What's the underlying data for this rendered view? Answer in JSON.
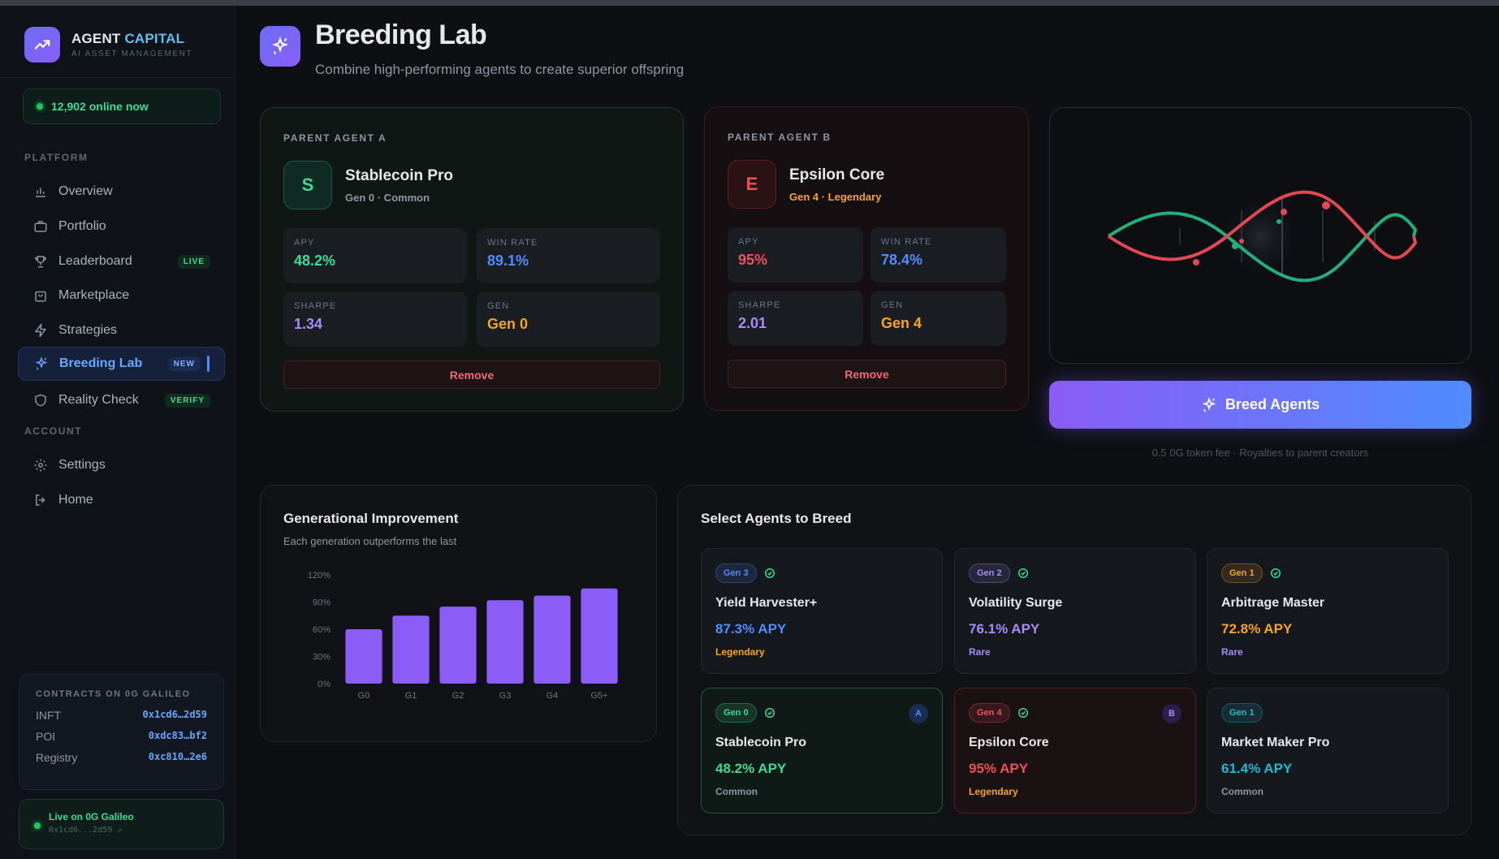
{
  "brand": {
    "name_1": "AGENT",
    "name_2": "CAPITAL",
    "subtitle": "AI ASSET MANAGEMENT"
  },
  "online": "12,902 online now",
  "sidebar": {
    "platform_label": "PLATFORM",
    "account_label": "ACCOUNT",
    "items": [
      {
        "label": "Overview"
      },
      {
        "label": "Portfolio"
      },
      {
        "label": "Leaderboard",
        "badge": "LIVE"
      },
      {
        "label": "Marketplace"
      },
      {
        "label": "Strategies"
      },
      {
        "label": "Breeding Lab",
        "badge": "NEW"
      },
      {
        "label": "Reality Check",
        "badge": "VERIFY"
      }
    ],
    "account_items": [
      {
        "label": "Settings"
      },
      {
        "label": "Home"
      }
    ]
  },
  "contracts": {
    "title": "CONTRACTS ON 0G GALILEO",
    "rows": [
      {
        "name": "INFT",
        "addr": "0x1cd6…2d59"
      },
      {
        "name": "POI",
        "addr": "0xdc83…bf2"
      },
      {
        "name": "Registry",
        "addr": "0xc810…2e6"
      }
    ]
  },
  "live": {
    "title": "Live on 0G Galileo",
    "addr": "0x1cd6...2d59 ↗"
  },
  "header": {
    "title": "Breeding Lab",
    "subtitle": "Combine high-performing agents to create superior offspring"
  },
  "parentA": {
    "label": "PARENT AGENT A",
    "initial": "S",
    "name": "Stablecoin Pro",
    "meta": "Gen 0 · Common",
    "stats": [
      {
        "label": "APY",
        "value": "48.2%"
      },
      {
        "label": "WIN RATE",
        "value": "89.1%"
      },
      {
        "label": "SHARPE",
        "value": "1.34"
      },
      {
        "label": "GEN",
        "value": "Gen 0"
      }
    ],
    "remove": "Remove"
  },
  "parentB": {
    "label": "PARENT AGENT B",
    "initial": "E",
    "name": "Epsilon Core",
    "meta": "Gen 4 · Legendary",
    "stats": [
      {
        "label": "APY",
        "value": "95%"
      },
      {
        "label": "WIN RATE",
        "value": "78.4%"
      },
      {
        "label": "SHARPE",
        "value": "2.01"
      },
      {
        "label": "GEN",
        "value": "Gen 4"
      }
    ],
    "remove": "Remove"
  },
  "breed_button": "Breed Agents",
  "fee_note": "0.5 0G token fee · Royalties to parent creators",
  "gen_chart": {
    "title": "Generational Improvement",
    "subtitle": "Each generation outperforms the last"
  },
  "chart_data": {
    "type": "bar",
    "title": "Generational Improvement",
    "categories": [
      "G0",
      "G1",
      "G2",
      "G3",
      "G4",
      "G5+"
    ],
    "values": [
      60,
      75,
      85,
      92,
      97,
      105
    ],
    "y_ticks": [
      "0%",
      "30%",
      "60%",
      "90%",
      "120%"
    ],
    "ylim": [
      0,
      120
    ],
    "color": "#8b5cf6"
  },
  "select": {
    "title": "Select Agents to Breed",
    "agents": [
      {
        "gen": "Gen 3",
        "name": "Yield Harvester+",
        "apy": "87.3% APY",
        "rarity": "Legendary",
        "genColor": "#4f8cff",
        "apyColor": "#4f8cff",
        "rarColor": "#f5a524",
        "slot": ""
      },
      {
        "gen": "Gen 2",
        "name": "Volatility Surge",
        "apy": "76.1% APY",
        "rarity": "Rare",
        "genColor": "#a78bfa",
        "apyColor": "#a78bfa",
        "rarColor": "#a78bfa",
        "slot": ""
      },
      {
        "gen": "Gen 1",
        "name": "Arbitrage Master",
        "apy": "72.8% APY",
        "rarity": "Rare",
        "genColor": "#f5a524",
        "apyColor": "#f5a524",
        "rarColor": "#a78bfa",
        "slot": ""
      },
      {
        "gen": "Gen 0",
        "name": "Stablecoin Pro",
        "apy": "48.2% APY",
        "rarity": "Common",
        "genColor": "#3ddc97",
        "apyColor": "#3ddc97",
        "rarColor": "#8d96a3",
        "slot": "A"
      },
      {
        "gen": "Gen 4",
        "name": "Epsilon Core",
        "apy": "95% APY",
        "rarity": "Legendary",
        "genColor": "#f0505a",
        "apyColor": "#f0505a",
        "rarColor": "#f5a524",
        "slot": "B"
      },
      {
        "gen": "Gen 1",
        "name": "Market Maker Pro",
        "apy": "61.4% APY",
        "rarity": "Common",
        "genColor": "#22b8cf",
        "apyColor": "#22b8cf",
        "rarColor": "#8d96a3",
        "slot": ""
      }
    ]
  }
}
